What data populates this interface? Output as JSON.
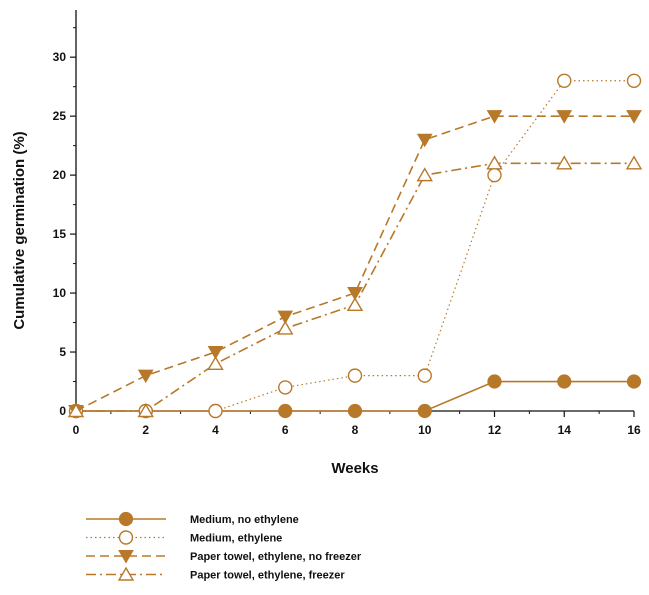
{
  "chart_data": {
    "type": "line",
    "title": "",
    "xlabel": "Weeks",
    "ylabel": "Cumulative germination (%)",
    "xlim": [
      0,
      16
    ],
    "ylim": [
      0,
      34
    ],
    "x_ticks": [
      0,
      2,
      4,
      6,
      8,
      10,
      12,
      14,
      16
    ],
    "y_ticks": [
      0,
      5,
      10,
      15,
      20,
      25,
      30
    ],
    "grid": false,
    "legend_position": "below",
    "accent_color": "#b8782a",
    "series": [
      {
        "name": "Medium, no ethylene",
        "line": "solid",
        "marker": "filled-circle",
        "x": [
          0,
          2,
          4,
          6,
          8,
          10,
          12,
          14,
          16
        ],
        "y": [
          0,
          0,
          0,
          0,
          0,
          0,
          2.5,
          2.5,
          2.5
        ]
      },
      {
        "name": "Medium, ethylene",
        "line": "dotted",
        "marker": "open-circle",
        "x": [
          0,
          2,
          4,
          6,
          8,
          10,
          12,
          14,
          16
        ],
        "y": [
          0,
          0,
          0,
          2,
          3,
          3,
          20,
          28,
          28
        ]
      },
      {
        "name": "Paper towel, ethylene, no freezer",
        "line": "dashed",
        "marker": "filled-triangle-down",
        "x": [
          0,
          2,
          4,
          6,
          8,
          10,
          12,
          14,
          16
        ],
        "y": [
          0,
          3,
          5,
          8,
          10,
          23,
          25,
          25,
          25
        ]
      },
      {
        "name": "Paper towel, ethylene, freezer",
        "line": "dash-dot",
        "marker": "open-triangle-up",
        "x": [
          0,
          2,
          4,
          6,
          8,
          10,
          12,
          14,
          16
        ],
        "y": [
          0,
          0,
          4,
          7,
          9,
          20,
          21,
          21,
          21
        ]
      }
    ]
  }
}
